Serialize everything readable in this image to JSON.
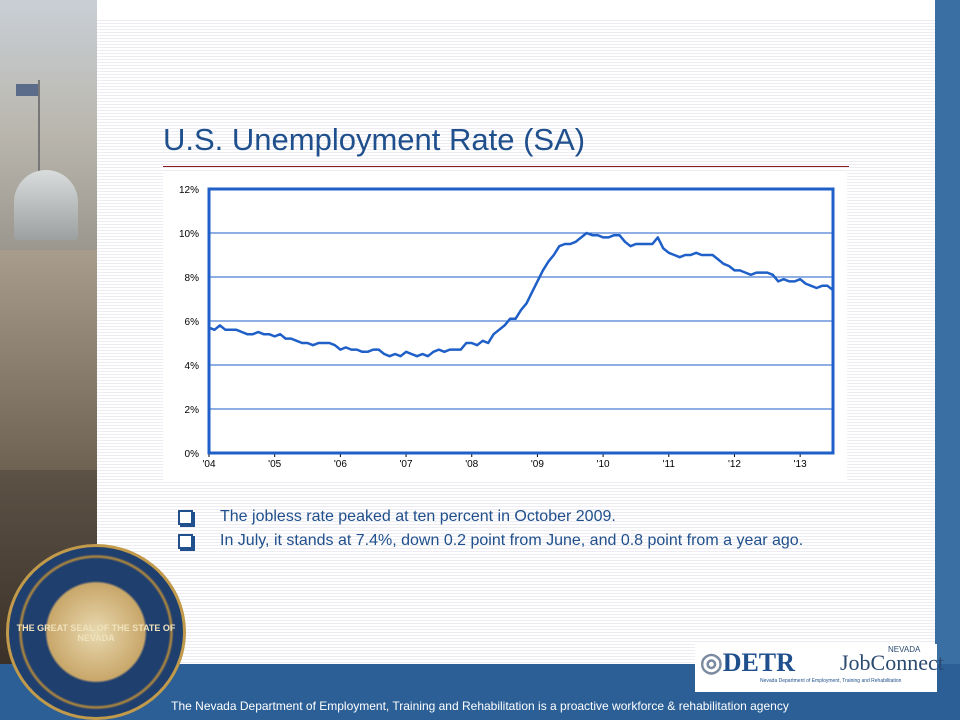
{
  "slide": {
    "title": "U.S. Unemployment Rate (SA)",
    "bullets": [
      "The jobless rate peaked at ten percent in October 2009.",
      "In July, it stands at 7.4%, down 0.2 point from June, and 0.8 point from a year ago."
    ],
    "footer": "The Nevada Department of Employment, Training and Rehabilitation is a proactive workforce & rehabilitation agency",
    "seal_text": "THE GREAT SEAL OF THE STATE OF NEVADA",
    "logo_detr": "DETR",
    "logo_detr_sub": "Nevada Department of Employment, Training and Rehabilitation",
    "logo_jobconnect": "JobConnect",
    "logo_jobconnect_small": "NEVADA"
  },
  "colors": {
    "title": "#1f4f8c",
    "line": "#1f5fc8",
    "plot_border": "#1f5fc8",
    "grid": "#1f5fc8",
    "footer_bg": "#2b5f96"
  },
  "chart_data": {
    "type": "line",
    "title": "",
    "xlabel": "",
    "ylabel": "",
    "x_tick_labels": [
      "'04",
      "'05",
      "'06",
      "'07",
      "'08",
      "'09",
      "'10",
      "'11",
      "'12",
      "'13"
    ],
    "y_tick_labels": [
      "0%",
      "2%",
      "4%",
      "6%",
      "8%",
      "10%",
      "12%"
    ],
    "ylim": [
      0,
      12
    ],
    "xlim": [
      "2004-01",
      "2013-07"
    ],
    "grid": true,
    "series": [
      {
        "x": [
          "2004-01",
          "2004-02",
          "2004-03",
          "2004-04",
          "2004-05",
          "2004-06",
          "2004-07",
          "2004-08",
          "2004-09",
          "2004-10",
          "2004-11",
          "2004-12",
          "2005-01",
          "2005-02",
          "2005-03",
          "2005-04",
          "2005-05",
          "2005-06",
          "2005-07",
          "2005-08",
          "2005-09",
          "2005-10",
          "2005-11",
          "2005-12",
          "2006-01",
          "2006-02",
          "2006-03",
          "2006-04",
          "2006-05",
          "2006-06",
          "2006-07",
          "2006-08",
          "2006-09",
          "2006-10",
          "2006-11",
          "2006-12",
          "2007-01",
          "2007-02",
          "2007-03",
          "2007-04",
          "2007-05",
          "2007-06",
          "2007-07",
          "2007-08",
          "2007-09",
          "2007-10",
          "2007-11",
          "2007-12",
          "2008-01",
          "2008-02",
          "2008-03",
          "2008-04",
          "2008-05",
          "2008-06",
          "2008-07",
          "2008-08",
          "2008-09",
          "2008-10",
          "2008-11",
          "2008-12",
          "2009-01",
          "2009-02",
          "2009-03",
          "2009-04",
          "2009-05",
          "2009-06",
          "2009-07",
          "2009-08",
          "2009-09",
          "2009-10",
          "2009-11",
          "2009-12",
          "2010-01",
          "2010-02",
          "2010-03",
          "2010-04",
          "2010-05",
          "2010-06",
          "2010-07",
          "2010-08",
          "2010-09",
          "2010-10",
          "2010-11",
          "2010-12",
          "2011-01",
          "2011-02",
          "2011-03",
          "2011-04",
          "2011-05",
          "2011-06",
          "2011-07",
          "2011-08",
          "2011-09",
          "2011-10",
          "2011-11",
          "2011-12",
          "2012-01",
          "2012-02",
          "2012-03",
          "2012-04",
          "2012-05",
          "2012-06",
          "2012-07",
          "2012-08",
          "2012-09",
          "2012-10",
          "2012-11",
          "2012-12",
          "2013-01",
          "2013-02",
          "2013-03",
          "2013-04",
          "2013-05",
          "2013-06",
          "2013-07"
        ],
        "y": [
          5.7,
          5.6,
          5.8,
          5.6,
          5.6,
          5.6,
          5.5,
          5.4,
          5.4,
          5.5,
          5.4,
          5.4,
          5.3,
          5.4,
          5.2,
          5.2,
          5.1,
          5.0,
          5.0,
          4.9,
          5.0,
          5.0,
          5.0,
          4.9,
          4.7,
          4.8,
          4.7,
          4.7,
          4.6,
          4.6,
          4.7,
          4.7,
          4.5,
          4.4,
          4.5,
          4.4,
          4.6,
          4.5,
          4.4,
          4.5,
          4.4,
          4.6,
          4.7,
          4.6,
          4.7,
          4.7,
          4.7,
          5.0,
          5.0,
          4.9,
          5.1,
          5.0,
          5.4,
          5.6,
          5.8,
          6.1,
          6.1,
          6.5,
          6.8,
          7.3,
          7.8,
          8.3,
          8.7,
          9.0,
          9.4,
          9.5,
          9.5,
          9.6,
          9.8,
          10.0,
          9.9,
          9.9,
          9.8,
          9.8,
          9.9,
          9.9,
          9.6,
          9.4,
          9.5,
          9.5,
          9.5,
          9.5,
          9.8,
          9.3,
          9.1,
          9.0,
          8.9,
          9.0,
          9.0,
          9.1,
          9.0,
          9.0,
          9.0,
          8.8,
          8.6,
          8.5,
          8.3,
          8.3,
          8.2,
          8.1,
          8.2,
          8.2,
          8.2,
          8.1,
          7.8,
          7.9,
          7.8,
          7.8,
          7.9,
          7.7,
          7.6,
          7.5,
          7.6,
          7.6,
          7.4
        ]
      }
    ]
  }
}
